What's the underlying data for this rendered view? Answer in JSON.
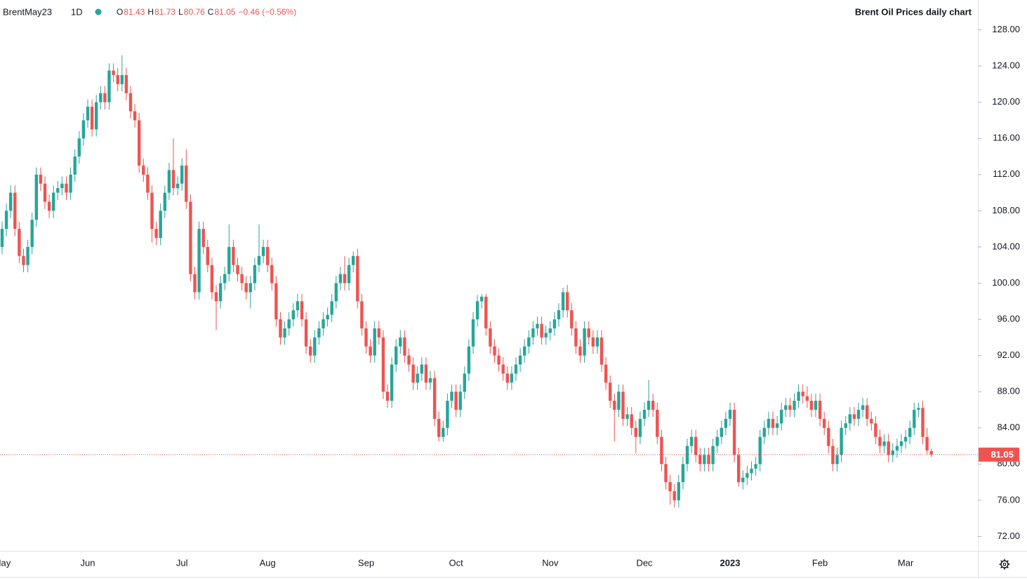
{
  "chart_data": {
    "type": "candlestick",
    "title": "Brent Oil Prices daily chart",
    "symbol": "BrentMay23",
    "interval": "1D",
    "legend_values": [
      {
        "label": "O",
        "value": 81.43
      },
      {
        "label": "H",
        "value": 81.73
      },
      {
        "label": "L",
        "value": 80.76
      },
      {
        "label": "C",
        "value": 81.05
      }
    ],
    "change": "−0.46 (−0.56%)",
    "last_price": 81.05,
    "up_color": "#26a69a",
    "down_color": "#ef5350",
    "ylim": [
      70.4,
      131.3
    ],
    "yticks": [
      {
        "value": 72,
        "label": "72.00"
      },
      {
        "value": 76,
        "label": "76.00"
      },
      {
        "value": 80,
        "label": "80.00"
      },
      {
        "value": 84,
        "label": "84.00"
      },
      {
        "value": 88,
        "label": "88.00"
      },
      {
        "value": 92,
        "label": "92.00"
      },
      {
        "value": 96,
        "label": "96.00"
      },
      {
        "value": 100,
        "label": "100.00"
      },
      {
        "value": 104,
        "label": "104.00"
      },
      {
        "value": 108,
        "label": "108.00"
      },
      {
        "value": 112,
        "label": "112.00"
      },
      {
        "value": 116,
        "label": "116.00"
      },
      {
        "value": 120,
        "label": "120.00"
      },
      {
        "value": 124,
        "label": "124.00"
      },
      {
        "value": 128,
        "label": "128.00"
      }
    ],
    "categories": [
      "May",
      null,
      null,
      null,
      null,
      null,
      null,
      null,
      null,
      null,
      null,
      null,
      null,
      null,
      null,
      null,
      null,
      null,
      null,
      null,
      "Jun",
      null,
      null,
      null,
      null,
      null,
      null,
      null,
      null,
      null,
      null,
      null,
      null,
      null,
      null,
      null,
      null,
      null,
      null,
      null,
      null,
      null,
      "Jul",
      null,
      null,
      null,
      null,
      null,
      null,
      null,
      null,
      null,
      null,
      null,
      null,
      null,
      null,
      null,
      null,
      null,
      null,
      null,
      "Aug",
      null,
      null,
      null,
      null,
      null,
      null,
      null,
      null,
      null,
      null,
      null,
      null,
      null,
      null,
      null,
      null,
      null,
      null,
      null,
      null,
      null,
      null,
      "Sep",
      null,
      null,
      null,
      null,
      null,
      null,
      null,
      null,
      null,
      null,
      null,
      null,
      null,
      null,
      null,
      null,
      null,
      null,
      null,
      null,
      "Oct",
      null,
      null,
      null,
      null,
      null,
      null,
      null,
      null,
      null,
      null,
      null,
      null,
      null,
      null,
      null,
      null,
      null,
      null,
      null,
      null,
      null,
      "Nov",
      null,
      null,
      null,
      null,
      null,
      null,
      null,
      null,
      null,
      null,
      null,
      null,
      null,
      null,
      null,
      null,
      null,
      null,
      null,
      null,
      null,
      "Dec",
      null,
      null,
      null,
      null,
      null,
      null,
      null,
      null,
      null,
      null,
      null,
      null,
      null,
      null,
      null,
      null,
      null,
      null,
      null,
      "2023",
      null,
      null,
      null,
      null,
      null,
      null,
      null,
      null,
      null,
      null,
      null,
      null,
      null,
      null,
      null,
      null,
      null,
      null,
      null,
      null,
      "Feb",
      null,
      null,
      null,
      null,
      null,
      null,
      null,
      null,
      null,
      null,
      null,
      null,
      null,
      null,
      null,
      null,
      null,
      null,
      null,
      "Mar",
      null,
      null,
      null,
      null,
      null,
      null
    ],
    "open": [
      104,
      106,
      108,
      110,
      106,
      103,
      102,
      104,
      107,
      112,
      111,
      109,
      108,
      110,
      110.5,
      111,
      110,
      112,
      114,
      116,
      118,
      119.5,
      117,
      120,
      121,
      120,
      123.5,
      123,
      122,
      123,
      121,
      119,
      118,
      113,
      112,
      110,
      106,
      105,
      108,
      110,
      112.5,
      110.5,
      111,
      113,
      109,
      101,
      99,
      106,
      104,
      102,
      99,
      98,
      100,
      101,
      104,
      102,
      101,
      100,
      99,
      100,
      102,
      103,
      104,
      102,
      100,
      96,
      94,
      95,
      96,
      97,
      98,
      96,
      93,
      92,
      94,
      95,
      96,
      96.5,
      98,
      100,
      101,
      100,
      102,
      103,
      98,
      95,
      93,
      92,
      95,
      94,
      88,
      87,
      91,
      93,
      94,
      92,
      91,
      89,
      90,
      91,
      89,
      89.5,
      85,
      83,
      84,
      87,
      88,
      86,
      88,
      90,
      93,
      96,
      98,
      98.5,
      95,
      93,
      92,
      91,
      90,
      89,
      90,
      91,
      92,
      93,
      94,
      95,
      95.5,
      94,
      94.5,
      95,
      96,
      97,
      99,
      97,
      95,
      93,
      92,
      95,
      94,
      93,
      94,
      91,
      89,
      87,
      86,
      88,
      85,
      85.5,
      84,
      83,
      85,
      86,
      87,
      86,
      83,
      80,
      78,
      77,
      76,
      78,
      80,
      82,
      83,
      81,
      80,
      81,
      80,
      82,
      83,
      84,
      85,
      86,
      81,
      78,
      78.5,
      79,
      79.5,
      80,
      83,
      84,
      85,
      84,
      84.5,
      86,
      86.5,
      86,
      87,
      88,
      87.5,
      87,
      86,
      87,
      85,
      84,
      82,
      80,
      81,
      84,
      84.5,
      85.5,
      85,
      86,
      86.5,
      85,
      84.5,
      83,
      82,
      82.5,
      81,
      81.5,
      82,
      82.5,
      83,
      84,
      86,
      86.2,
      83,
      81.43
    ],
    "high": [
      106.8,
      108.8,
      110.8,
      110.8,
      106.8,
      103.8,
      104.8,
      107.8,
      112.8,
      112.8,
      111.8,
      109.8,
      110.8,
      111.3,
      111.8,
      111.8,
      112.8,
      114.8,
      116.8,
      118.8,
      120.3,
      120.3,
      120.8,
      121.8,
      121.8,
      124.3,
      124.3,
      123.8,
      125.2,
      123.8,
      121.8,
      119.8,
      118.8,
      113.8,
      112.8,
      110.8,
      106.8,
      108.8,
      110.8,
      113.3,
      116,
      111.8,
      113.8,
      114.8,
      109.8,
      101.8,
      106.8,
      106.8,
      104.8,
      102.8,
      99.8,
      100.8,
      101.8,
      106.5,
      104.8,
      102.8,
      101.8,
      100.8,
      100.8,
      102.8,
      106.5,
      104.8,
      104.8,
      102.8,
      100.8,
      96.8,
      95.8,
      96.8,
      97.8,
      98.8,
      98.8,
      96.8,
      93.8,
      94.8,
      95.8,
      96.8,
      97.3,
      98.8,
      100.8,
      101.8,
      103,
      102.8,
      103.5,
      103.8,
      98.8,
      95.8,
      93.8,
      95.8,
      95.8,
      94.8,
      88.8,
      91.8,
      93.8,
      94.8,
      94.8,
      92.8,
      91.8,
      90.8,
      91.8,
      91.8,
      90.3,
      90.3,
      85.8,
      84.8,
      87.8,
      88.8,
      88.8,
      88.8,
      90.8,
      93.8,
      96.8,
      98.7,
      98.8,
      98.8,
      95.8,
      93.8,
      92.8,
      91.8,
      90.8,
      90.8,
      91.8,
      92.8,
      93.8,
      94.8,
      95.8,
      96.3,
      96.3,
      95.3,
      95.8,
      96.8,
      97.8,
      99.5,
      99.8,
      97.8,
      95.8,
      93.8,
      95.8,
      95.8,
      94.8,
      94.8,
      94.8,
      91.8,
      89.8,
      87.8,
      88.8,
      88.8,
      86.3,
      86.3,
      84.8,
      85.8,
      86.8,
      89.3,
      87.8,
      86.8,
      83.8,
      80.8,
      78.8,
      77.8,
      78.8,
      80.8,
      82.8,
      83.8,
      83.8,
      81.8,
      81.8,
      81.8,
      82.8,
      83.8,
      84.8,
      85.8,
      86.8,
      86.8,
      81.8,
      79.3,
      79.8,
      80.3,
      80.8,
      83.8,
      84.8,
      85.8,
      85.8,
      85.3,
      86.8,
      87.3,
      87.3,
      87.8,
      88.8,
      88.8,
      88.6,
      87.8,
      87.8,
      87.8,
      85.8,
      84.8,
      82.8,
      81.8,
      84.8,
      85.3,
      86.3,
      86.3,
      86.8,
      87.3,
      87.3,
      85.8,
      85.3,
      83.8,
      83.3,
      83.3,
      82.3,
      82.8,
      83.3,
      83.8,
      84.8,
      86.8,
      86.8,
      87,
      84,
      81.73
    ],
    "low": [
      103.2,
      105.2,
      107.2,
      105.2,
      102.2,
      101.2,
      101.2,
      103.2,
      106.2,
      110.2,
      108.2,
      107.2,
      107.2,
      109.2,
      109.7,
      109.2,
      109.2,
      111.2,
      113.2,
      115.2,
      117.2,
      116.2,
      116.2,
      119.2,
      119.2,
      119.2,
      122.2,
      121.2,
      121.2,
      120.2,
      118.2,
      117.2,
      112.2,
      111.2,
      109.2,
      104.5,
      104.2,
      104.2,
      107.2,
      109.2,
      109.7,
      109.7,
      110.2,
      108.2,
      100.2,
      98.2,
      98.2,
      103.2,
      101.2,
      98.2,
      94.8,
      97.2,
      99.2,
      100.2,
      101.2,
      100.2,
      99.2,
      98.2,
      97.2,
      99.2,
      101.2,
      102.2,
      101.2,
      99.2,
      95.2,
      93.2,
      93.2,
      94.2,
      95.2,
      96.2,
      95.2,
      92.2,
      91.2,
      91.2,
      93.2,
      94.2,
      95.2,
      95.7,
      97.2,
      99.2,
      99.2,
      99.2,
      101.2,
      97.2,
      94.2,
      92.2,
      91.2,
      91.2,
      93.2,
      87.2,
      86.2,
      86.2,
      90.2,
      92.2,
      91.2,
      90.2,
      88.2,
      88.2,
      89.2,
      88.2,
      88.2,
      84.2,
      82.5,
      82.5,
      83.2,
      86.2,
      85.2,
      85.2,
      87.2,
      89.2,
      92.2,
      95.2,
      97.2,
      94.2,
      92.2,
      91.2,
      90.2,
      89.2,
      88.2,
      88.2,
      89.2,
      90.2,
      91.2,
      92.2,
      93.2,
      94.2,
      93.2,
      93.2,
      93.7,
      94.2,
      95.2,
      96.2,
      96.2,
      94.2,
      92.2,
      91.2,
      91.2,
      93.2,
      92.2,
      92.2,
      90.2,
      88.2,
      86.2,
      82.5,
      85.2,
      84.2,
      84.2,
      83.2,
      81.2,
      82.2,
      84.2,
      85.2,
      85.2,
      82.2,
      79.2,
      77.2,
      75.5,
      75.2,
      75.2,
      77.2,
      79.2,
      81.2,
      80.2,
      79.2,
      79.2,
      79.2,
      79.2,
      81.2,
      82.2,
      83.2,
      84.2,
      80.2,
      77.5,
      77.2,
      77.7,
      78.2,
      78.7,
      79.2,
      82.2,
      83.2,
      83.2,
      83.2,
      83.7,
      85.2,
      85.2,
      85.2,
      86.2,
      86.7,
      86.2,
      85.2,
      85.2,
      84.2,
      83.2,
      81.2,
      79.2,
      79.2,
      80.2,
      83.2,
      83.7,
      84.2,
      84.2,
      85.2,
      84.2,
      83.7,
      82.2,
      81.2,
      81.2,
      80.2,
      80.2,
      80.7,
      81.2,
      81.7,
      82.2,
      83.2,
      85.2,
      82.2,
      81.1,
      80.76
    ],
    "close": [
      106,
      108,
      110,
      106,
      103,
      102,
      104,
      107,
      112,
      111,
      109,
      108,
      110,
      110.5,
      111,
      110,
      112,
      114,
      116,
      118,
      119.5,
      117,
      120,
      121,
      120,
      123.5,
      123,
      122,
      123,
      121,
      119,
      118,
      113,
      112,
      110,
      106,
      105,
      108,
      110,
      112.5,
      110.5,
      111,
      113,
      109,
      101,
      99,
      106,
      104,
      102,
      99,
      98,
      100,
      101,
      104,
      102,
      101,
      100,
      99,
      100,
      102,
      103,
      104,
      102,
      100,
      96,
      94,
      95,
      96,
      97,
      98,
      96,
      93,
      92,
      94,
      95,
      96,
      96.5,
      98,
      100,
      101,
      100,
      102,
      103,
      98,
      95,
      93,
      92,
      95,
      94,
      88,
      87,
      91,
      93,
      94,
      92,
      91,
      89,
      90,
      91,
      89,
      89.5,
      85,
      83,
      84,
      87,
      88,
      86,
      88,
      90,
      93,
      96,
      98,
      98.5,
      95,
      93,
      92,
      91,
      90,
      89,
      90,
      91,
      92,
      93,
      94,
      95,
      95.5,
      94,
      94.5,
      95,
      96,
      97,
      99,
      97,
      95,
      93,
      92,
      95,
      94,
      93,
      94,
      91,
      89,
      87,
      86,
      88,
      85,
      85.5,
      84,
      83,
      85,
      86,
      87,
      86,
      83,
      80,
      78,
      77,
      76,
      78,
      80,
      82,
      83,
      81,
      80,
      81,
      80,
      82,
      83,
      84,
      85,
      86,
      81,
      78,
      78.5,
      79,
      79.5,
      80,
      83,
      84,
      85,
      84,
      84.5,
      86,
      86.5,
      86,
      87,
      88,
      87.5,
      87,
      86,
      87,
      85,
      84,
      82,
      80,
      81,
      84,
      84.5,
      85.5,
      85,
      86,
      86.5,
      85,
      84.5,
      83,
      82,
      82.5,
      81,
      81.5,
      82,
      82.5,
      83,
      84,
      86,
      86.2,
      83,
      81.51,
      81.05
    ]
  }
}
